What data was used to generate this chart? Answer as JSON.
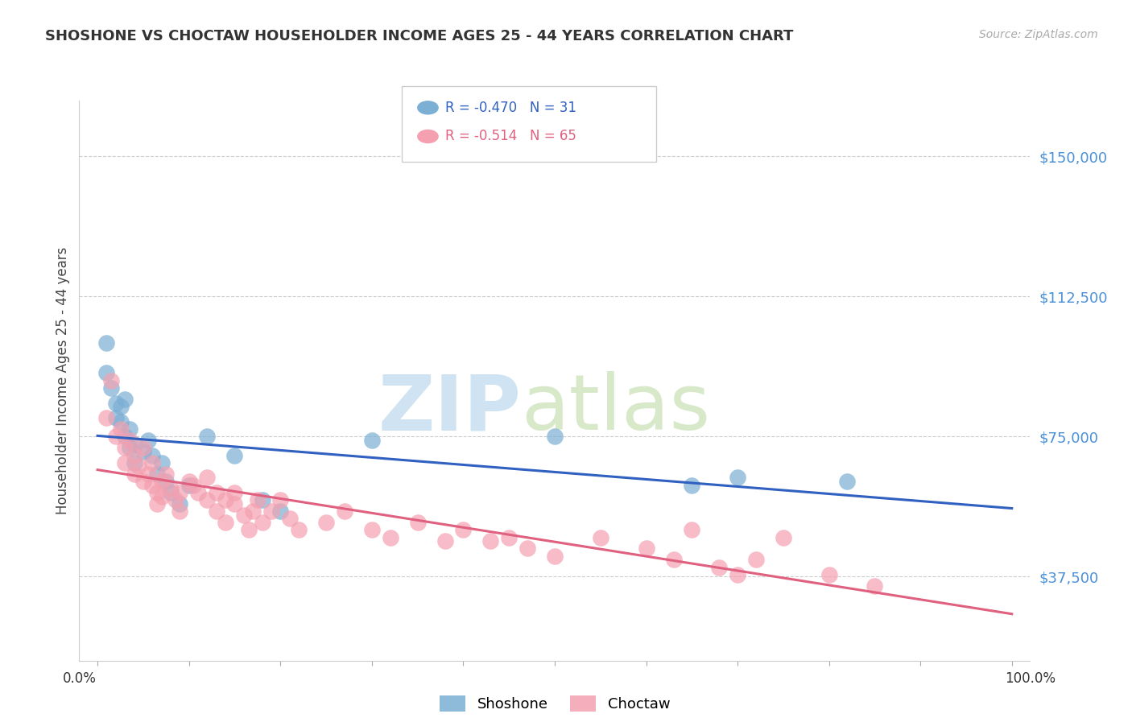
{
  "title": "SHOSHONE VS CHOCTAW HOUSEHOLDER INCOME AGES 25 - 44 YEARS CORRELATION CHART",
  "source": "Source: ZipAtlas.com",
  "ylabel": "Householder Income Ages 25 - 44 years",
  "ytick_labels": [
    "$150,000",
    "$112,500",
    "$75,000",
    "$37,500"
  ],
  "ytick_values": [
    150000,
    112500,
    75000,
    37500
  ],
  "ymin": 15000,
  "ymax": 165000,
  "xmin": -0.02,
  "xmax": 1.02,
  "shoshone_color": "#7bafd4",
  "choctaw_color": "#f4a0b0",
  "shoshone_line_color": "#3060c0",
  "choctaw_line_color": "#e06080",
  "shoshone_x": [
    0.01,
    0.01,
    0.015,
    0.02,
    0.02,
    0.025,
    0.025,
    0.03,
    0.03,
    0.035,
    0.035,
    0.04,
    0.04,
    0.05,
    0.055,
    0.06,
    0.065,
    0.07,
    0.075,
    0.08,
    0.09,
    0.1,
    0.12,
    0.15,
    0.18,
    0.2,
    0.3,
    0.5,
    0.65,
    0.7,
    0.82
  ],
  "shoshone_y": [
    100000,
    92000,
    88000,
    84000,
    80000,
    83000,
    79000,
    85000,
    75000,
    77000,
    72000,
    73000,
    68000,
    71000,
    74000,
    70000,
    65000,
    68000,
    63000,
    60000,
    57000,
    62000,
    75000,
    70000,
    58000,
    55000,
    74000,
    75000,
    62000,
    64000,
    63000
  ],
  "choctaw_x": [
    0.01,
    0.015,
    0.02,
    0.025,
    0.03,
    0.03,
    0.035,
    0.04,
    0.04,
    0.045,
    0.05,
    0.05,
    0.055,
    0.06,
    0.06,
    0.065,
    0.065,
    0.07,
    0.07,
    0.075,
    0.08,
    0.085,
    0.09,
    0.09,
    0.1,
    0.105,
    0.11,
    0.12,
    0.12,
    0.13,
    0.13,
    0.14,
    0.14,
    0.15,
    0.15,
    0.16,
    0.165,
    0.17,
    0.175,
    0.18,
    0.19,
    0.2,
    0.21,
    0.22,
    0.25,
    0.27,
    0.3,
    0.32,
    0.35,
    0.38,
    0.4,
    0.43,
    0.45,
    0.47,
    0.5,
    0.55,
    0.6,
    0.63,
    0.65,
    0.68,
    0.7,
    0.72,
    0.75,
    0.8,
    0.85
  ],
  "choctaw_y": [
    80000,
    90000,
    75000,
    77000,
    72000,
    68000,
    74000,
    70000,
    65000,
    67000,
    72000,
    63000,
    65000,
    68000,
    62000,
    60000,
    57000,
    63000,
    59000,
    65000,
    61000,
    58000,
    60000,
    55000,
    63000,
    62000,
    60000,
    64000,
    58000,
    60000,
    55000,
    58000,
    52000,
    60000,
    57000,
    54000,
    50000,
    55000,
    58000,
    52000,
    55000,
    58000,
    53000,
    50000,
    52000,
    55000,
    50000,
    48000,
    52000,
    47000,
    50000,
    47000,
    48000,
    45000,
    43000,
    48000,
    45000,
    42000,
    50000,
    40000,
    38000,
    42000,
    48000,
    38000,
    35000
  ],
  "legend_row1": "R = -0.470   N = 31",
  "legend_row2": "R = -0.514   N = 65",
  "legend_label1": "Shoshone",
  "legend_label2": "Choctaw",
  "watermark_zip": "ZIP",
  "watermark_atlas": "atlas"
}
